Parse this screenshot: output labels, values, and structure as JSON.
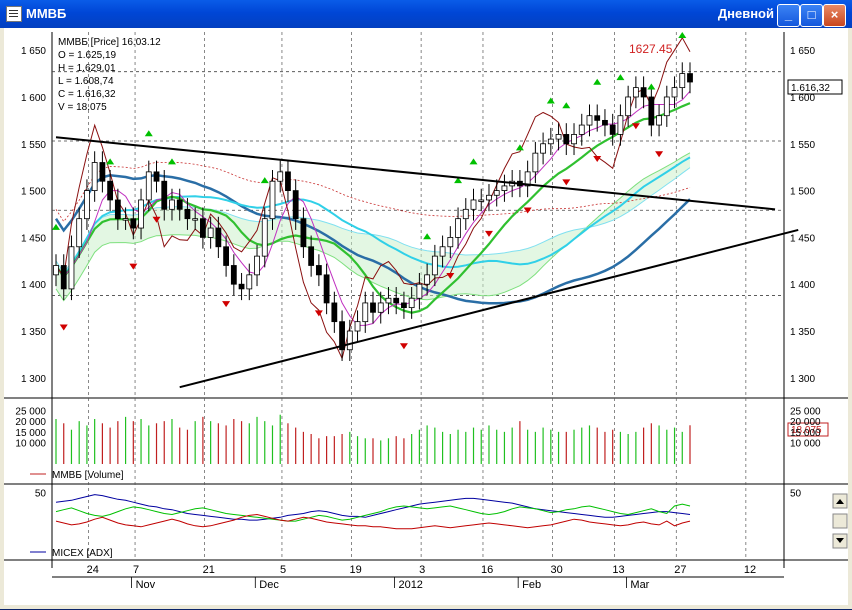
{
  "window": {
    "title": "ММВБ",
    "mode_label": "Дневной",
    "buttons": {
      "minimize": "_",
      "maximize": "□",
      "close": "×"
    }
  },
  "chart_data": [
    {
      "type": "candlestick",
      "header": {
        "line1": "ММВБ [Price] 16.03.12",
        "open": "O = 1.625,19",
        "high": "H = 1.629,01",
        "low": "L = 1.608,74",
        "close": "C = 1.616,32",
        "volume": "V = 18.075"
      },
      "peak_label": "1627.45",
      "last_price_label": "1.616,32",
      "y_ticks": [
        "1 650",
        "1 600",
        "1 550",
        "1 500",
        "1 450",
        "1 400",
        "1 350",
        "1 300"
      ],
      "y_tick_values": [
        1650,
        1600,
        1550,
        1500,
        1450,
        1400,
        1350,
        1300
      ],
      "ylim": [
        1287,
        1663
      ],
      "horizontal_levels": [
        1627,
        1553,
        1479,
        1388
      ],
      "close_series": [
        1420,
        1395,
        1440,
        1470,
        1500,
        1530,
        1510,
        1490,
        1470,
        1470,
        1460,
        1490,
        1520,
        1510,
        1480,
        1490,
        1480,
        1470,
        1470,
        1450,
        1460,
        1440,
        1420,
        1400,
        1395,
        1410,
        1430,
        1470,
        1510,
        1520,
        1500,
        1470,
        1440,
        1420,
        1410,
        1380,
        1360,
        1330,
        1350,
        1360,
        1380,
        1370,
        1380,
        1385,
        1380,
        1375,
        1385,
        1400,
        1410,
        1430,
        1440,
        1450,
        1470,
        1480,
        1490,
        1490,
        1495,
        1500,
        1505,
        1510,
        1505,
        1520,
        1540,
        1550,
        1555,
        1560,
        1550,
        1560,
        1570,
        1580,
        1575,
        1570,
        1560,
        1580,
        1600,
        1610,
        1600,
        1570,
        1580,
        1600,
        1610,
        1625,
        1616
      ],
      "buy_arrow_indices": [
        0,
        7,
        12,
        15,
        27,
        48,
        52,
        54,
        60,
        64,
        66,
        70,
        73,
        77,
        81
      ],
      "sell_arrow_indices": [
        1,
        10,
        13,
        22,
        34,
        45,
        51,
        56,
        61,
        66,
        70,
        75,
        78
      ],
      "trendlines": [
        {
          "from": [
            0,
            1557
          ],
          "to": [
            93,
            1480
          ]
        },
        {
          "from": [
            16,
            1290
          ],
          "to": [
            96,
            1458
          ]
        }
      ]
    },
    {
      "type": "bar",
      "title": "ММВБ [Volume]",
      "y_ticks": [
        "25 000",
        "20 000",
        "15 000",
        "10 000"
      ],
      "ylim": [
        0,
        28000
      ],
      "last_value_label": "18.075",
      "values": [
        21000,
        19000,
        16000,
        20000,
        18000,
        21000,
        19000,
        17000,
        20000,
        22000,
        20000,
        21000,
        18000,
        19000,
        20000,
        21000,
        17000,
        16000,
        20000,
        22000,
        20000,
        19000,
        18000,
        21000,
        20000,
        19000,
        22000,
        20000,
        18000,
        23000,
        19000,
        17000,
        15000,
        14000,
        12000,
        13000,
        13000,
        14000,
        15000,
        13000,
        12000,
        12000,
        11000,
        12000,
        13000,
        12000,
        14000,
        16000,
        18000,
        17000,
        15000,
        14000,
        16000,
        15000,
        17000,
        16000,
        18000,
        16000,
        15000,
        17000,
        20000,
        16000,
        15000,
        17000,
        16000,
        15000,
        15000,
        16000,
        17000,
        18000,
        17000,
        15000,
        16000,
        15000,
        14000,
        15000,
        17000,
        19000,
        18000,
        16000,
        17000,
        15000,
        18075
      ]
    },
    {
      "type": "line",
      "title": "MICEX [ADX]",
      "y_ticks": [
        "50"
      ],
      "ylim": [
        0,
        55
      ],
      "series": [
        {
          "color": "#0000a0",
          "values": [
            40,
            41,
            42,
            44,
            46,
            48,
            47,
            45,
            43,
            42,
            40,
            38,
            36,
            35,
            33,
            32,
            30,
            28,
            27,
            26,
            25,
            24,
            23,
            22,
            22,
            21,
            21,
            22,
            23,
            24,
            26,
            27,
            28,
            30,
            31,
            30,
            28,
            26,
            25,
            25,
            24,
            26,
            28,
            30,
            32,
            34,
            36,
            38,
            39,
            40,
            41,
            42,
            43,
            44,
            44,
            43,
            42,
            41,
            40,
            39,
            37,
            35,
            33,
            32,
            31,
            30,
            29,
            28,
            27,
            26,
            25,
            24,
            24,
            25,
            26,
            27,
            28,
            29,
            30,
            30,
            29,
            28,
            27
          ]
        },
        {
          "color": "#00c000",
          "values": [
            30,
            32,
            34,
            31,
            28,
            26,
            25,
            27,
            30,
            33,
            35,
            34,
            32,
            30,
            28,
            27,
            29,
            31,
            33,
            34,
            32,
            30,
            28,
            27,
            26,
            25,
            24,
            23,
            22,
            21,
            20,
            20,
            22,
            24,
            26,
            25,
            23,
            21,
            22,
            24,
            26,
            28,
            30,
            33,
            35,
            36,
            35,
            34,
            33,
            34,
            35,
            36,
            34,
            32,
            30,
            28,
            27,
            28,
            30,
            33,
            35,
            34,
            33,
            31,
            29,
            30,
            32,
            33,
            35,
            36,
            34,
            32,
            30,
            28,
            27,
            29,
            31,
            33,
            30,
            28,
            36,
            38,
            36
          ]
        },
        {
          "color": "#c00000",
          "values": [
            20,
            18,
            16,
            17,
            19,
            22,
            24,
            21,
            18,
            16,
            15,
            14,
            16,
            18,
            20,
            22,
            20,
            17,
            15,
            14,
            15,
            17,
            19,
            21,
            24,
            26,
            27,
            25,
            23,
            21,
            20,
            22,
            24,
            23,
            21,
            19,
            18,
            17,
            16,
            15,
            15,
            14,
            14,
            13,
            12,
            12,
            12,
            13,
            14,
            15,
            14,
            13,
            14,
            15,
            16,
            17,
            18,
            17,
            16,
            15,
            14,
            13,
            14,
            15,
            16,
            18,
            20,
            22,
            21,
            19,
            18,
            17,
            16,
            15,
            16,
            18,
            19,
            17,
            16,
            20,
            15,
            18,
            20
          ]
        }
      ]
    }
  ],
  "time_axis": {
    "days": [
      {
        "label": "24",
        "i": 5
      },
      {
        "label": "7",
        "i": 11
      },
      {
        "label": "21",
        "i": 20
      },
      {
        "label": "5",
        "i": 30
      },
      {
        "label": "19",
        "i": 39
      },
      {
        "label": "3",
        "i": 48
      },
      {
        "label": "16",
        "i": 56
      },
      {
        "label": "30",
        "i": 65
      },
      {
        "label": "13",
        "i": 73
      },
      {
        "label": "27",
        "i": 81
      },
      {
        "label": "12",
        "i": 90
      }
    ],
    "months": [
      {
        "label": "Nov",
        "i": 9
      },
      {
        "label": "Dec",
        "i": 25
      },
      {
        "label": "2012",
        "i": 43
      },
      {
        "label": "Feb",
        "i": 59
      },
      {
        "label": "Mar",
        "i": 73
      }
    ]
  },
  "colors": {
    "bull_arrow": "#00c000",
    "bear_arrow": "#d00000",
    "sma_blue": "#2a6ea6",
    "sma_cyan": "#30d0e8",
    "sma_green": "#30c030",
    "sma_magenta": "#c030c0",
    "volume_up": "#20c020",
    "volume_down": "#c02020"
  }
}
